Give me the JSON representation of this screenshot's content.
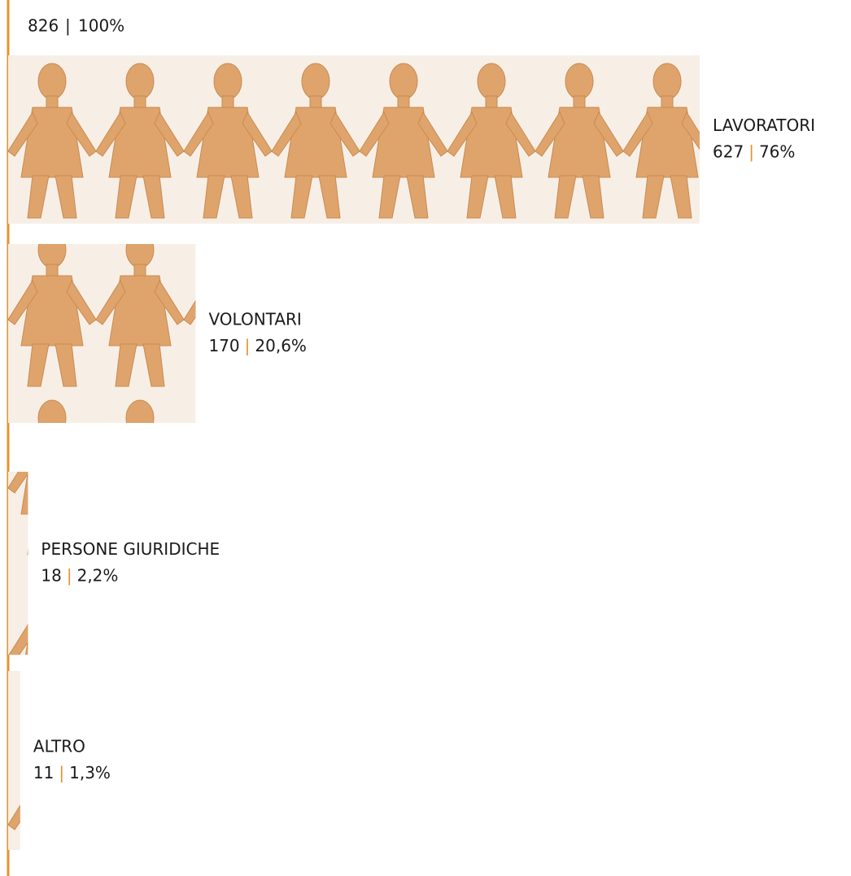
{
  "chart_data": {
    "type": "bar",
    "orientation": "horizontal",
    "total": 826,
    "total_percent": 100,
    "total_percent_label": "100%",
    "separator": "|",
    "categories": [
      "LAVORATORI",
      "VOLONTARI",
      "PERSONE GIURIDICHE",
      "ALTRO"
    ],
    "values": [
      627,
      170,
      18,
      11
    ],
    "percent_values": [
      76,
      20.6,
      2.2,
      1.3
    ],
    "percent_labels": [
      "76%",
      "20,6%",
      "2,2%",
      "1,3%"
    ],
    "color": "#dfa46c",
    "accent_color": "#e8912d"
  }
}
